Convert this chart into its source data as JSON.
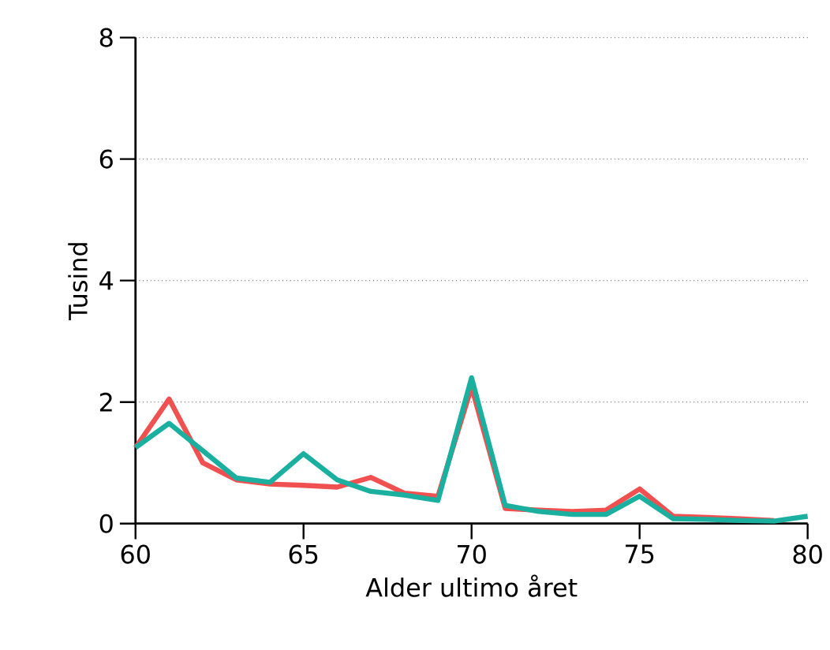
{
  "chart_data": {
    "type": "line",
    "xlabel": "Alder ultimo året",
    "ylabel": "Tusind",
    "x": [
      60,
      61,
      62,
      63,
      64,
      65,
      66,
      67,
      68,
      69,
      70,
      71,
      72,
      73,
      74,
      75,
      76,
      77,
      78,
      79,
      80
    ],
    "series": [
      {
        "color": "#f0504f",
        "values": [
          1.25,
          2.05,
          1.0,
          0.72,
          0.65,
          0.63,
          0.6,
          0.76,
          0.5,
          0.45,
          2.25,
          0.25,
          0.22,
          0.2,
          0.22,
          0.57,
          0.12,
          0.1,
          0.08,
          0.05,
          null
        ]
      },
      {
        "color": "#1aaf9f",
        "values": [
          1.25,
          1.65,
          1.2,
          0.75,
          0.68,
          1.15,
          0.72,
          0.53,
          0.47,
          0.38,
          2.4,
          0.3,
          0.2,
          0.15,
          0.15,
          0.45,
          0.08,
          0.07,
          0.05,
          0.04,
          0.12
        ]
      }
    ],
    "xlim": [
      60,
      80
    ],
    "xticks": [
      60,
      65,
      70,
      75,
      80
    ],
    "ylim": [
      0,
      8
    ],
    "yticks": [
      0,
      2,
      4,
      6,
      8
    ],
    "grid": "y",
    "line_style": "solid",
    "marker": "none"
  }
}
